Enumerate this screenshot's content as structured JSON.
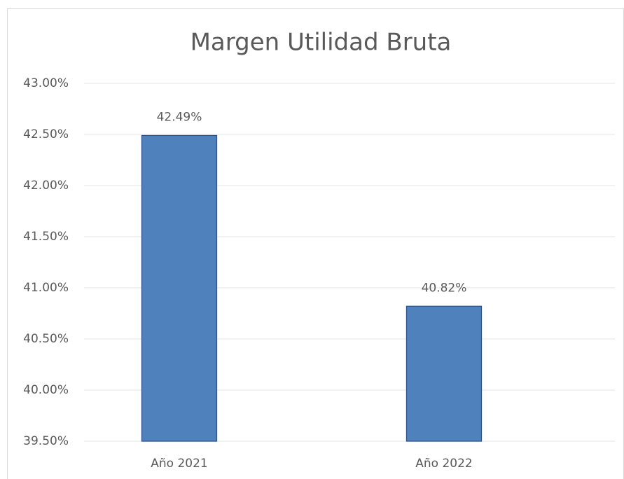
{
  "chart_data": {
    "type": "bar",
    "title": "Margen Utilidad Bruta",
    "categories": [
      "Año 2021",
      "Año 2022"
    ],
    "values": [
      42.49,
      40.82
    ],
    "value_labels": [
      "42.49%",
      "40.82%"
    ],
    "color": "#4f81bd",
    "ylim": [
      39.5,
      43
    ],
    "yticks": [
      {
        "value": 39.5,
        "label": "39.50%"
      },
      {
        "value": 40,
        "label": "40.00%"
      },
      {
        "value": 40.5,
        "label": "40.50%"
      },
      {
        "value": 41,
        "label": "41.00%"
      },
      {
        "value": 41.5,
        "label": "41.50%"
      },
      {
        "value": 42,
        "label": "42.00%"
      },
      {
        "value": 42.5,
        "label": "42.50%"
      },
      {
        "value": 43,
        "label": "43.00%"
      }
    ],
    "grid": true
  }
}
